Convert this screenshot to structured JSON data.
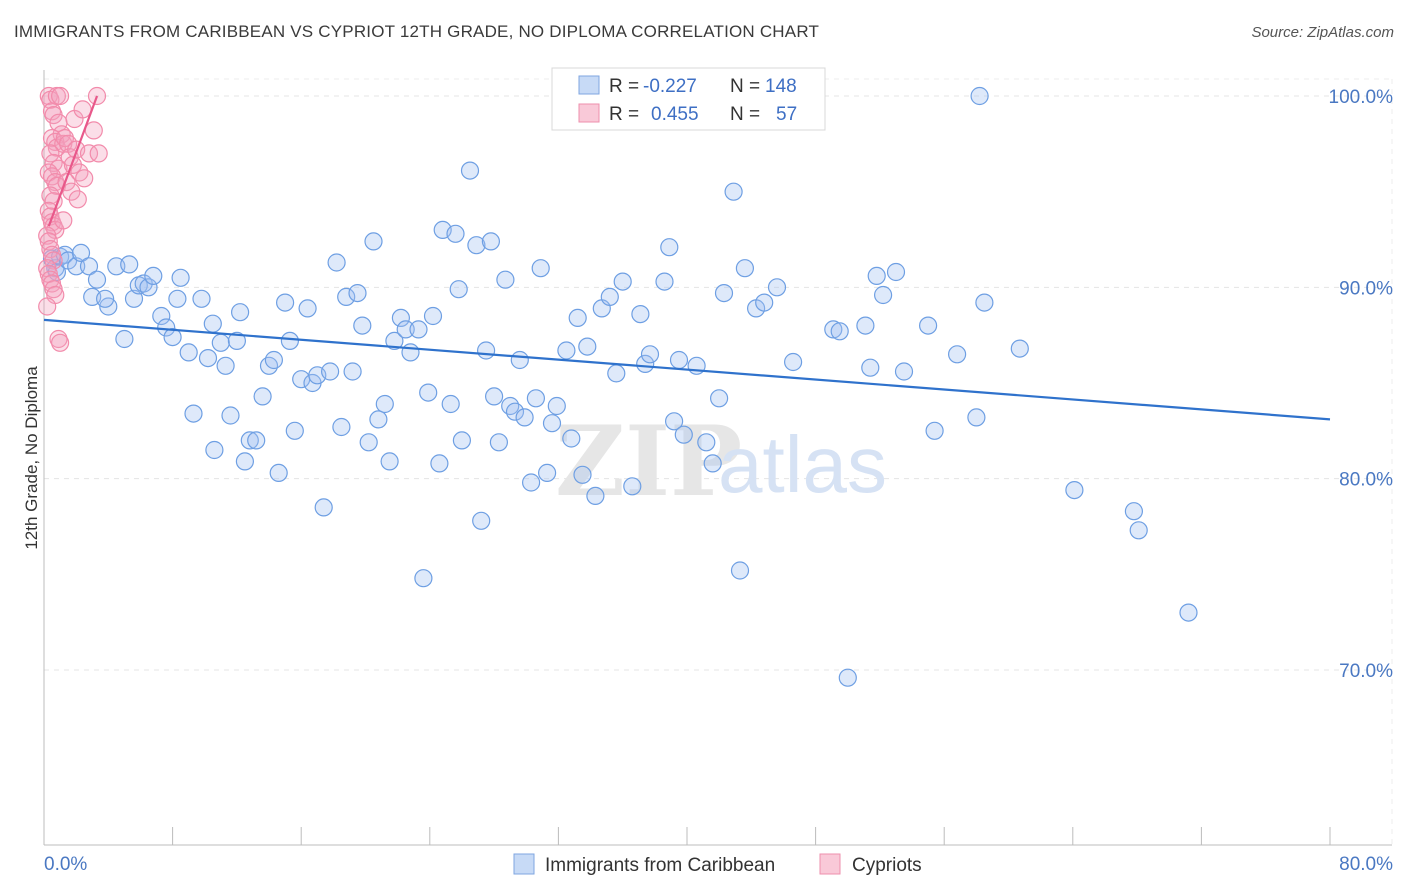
{
  "header": {
    "title": "IMMIGRANTS FROM CARIBBEAN VS CYPRIOT 12TH GRADE, NO DIPLOMA CORRELATION CHART",
    "source": "Source: ZipAtlas.com"
  },
  "watermark": {
    "zip": "ZIP",
    "atlas": "atlas"
  },
  "stats_legend": {
    "rows": [
      {
        "r_label": "R =",
        "r_value": "-0.227",
        "n_label": "N =",
        "n_value": "148",
        "color": "#a9c6f0"
      },
      {
        "r_label": "R =",
        "r_value": "0.455",
        "n_label": "N =",
        "n_value": "57",
        "color": "#f6b6c9"
      }
    ]
  },
  "chart_data": {
    "type": "scatter",
    "title": "IMMIGRANTS FROM CARIBBEAN VS CYPRIOT 12TH GRADE, NO DIPLOMA CORRELATION CHART",
    "xlabel": "",
    "ylabel": "12th Grade, No Diploma",
    "xlim": [
      0,
      80
    ],
    "ylim": [
      60,
      102
    ],
    "x_tick_labels": [
      "0.0%",
      "80.0%"
    ],
    "y_ticks": [
      70,
      80,
      90,
      100
    ],
    "y_tick_labels": [
      "70.0%",
      "80.0%",
      "90.0%",
      "100.0%"
    ],
    "grid": true,
    "legend_position": "bottom",
    "series": [
      {
        "name": "Immigrants from Caribbean",
        "color": "#6e9fe3",
        "line_color": "#2f72cc",
        "trend": [
          [
            0,
            88.3
          ],
          [
            80,
            83.1
          ]
        ],
        "points": [
          [
            0.5,
            91.5
          ],
          [
            0.7,
            91.0
          ],
          [
            0.8,
            90.8
          ],
          [
            1.0,
            91.6
          ],
          [
            1.3,
            91.7
          ],
          [
            1.5,
            91.4
          ],
          [
            2.0,
            91.1
          ],
          [
            2.3,
            91.8
          ],
          [
            2.8,
            91.1
          ],
          [
            3.3,
            90.4
          ],
          [
            3.0,
            89.5
          ],
          [
            4.0,
            89.0
          ],
          [
            3.8,
            89.4
          ],
          [
            4.5,
            91.1
          ],
          [
            5.3,
            91.2
          ],
          [
            5.0,
            87.3
          ],
          [
            5.6,
            89.4
          ],
          [
            5.9,
            90.1
          ],
          [
            6.2,
            90.2
          ],
          [
            6.5,
            90.0
          ],
          [
            6.8,
            90.6
          ],
          [
            7.3,
            88.5
          ],
          [
            7.6,
            87.9
          ],
          [
            8.0,
            87.4
          ],
          [
            8.3,
            89.4
          ],
          [
            8.5,
            90.5
          ],
          [
            9.0,
            86.6
          ],
          [
            9.3,
            83.4
          ],
          [
            9.8,
            89.4
          ],
          [
            10.2,
            86.3
          ],
          [
            10.5,
            88.1
          ],
          [
            10.6,
            81.5
          ],
          [
            11.0,
            87.1
          ],
          [
            11.3,
            85.9
          ],
          [
            11.6,
            83.3
          ],
          [
            12.0,
            87.2
          ],
          [
            12.2,
            88.7
          ],
          [
            12.5,
            80.9
          ],
          [
            12.8,
            82.0
          ],
          [
            13.2,
            82.0
          ],
          [
            13.6,
            84.3
          ],
          [
            14.0,
            85.9
          ],
          [
            14.3,
            86.2
          ],
          [
            14.6,
            80.3
          ],
          [
            15.0,
            89.2
          ],
          [
            15.3,
            87.2
          ],
          [
            15.6,
            82.5
          ],
          [
            16.0,
            85.2
          ],
          [
            16.4,
            88.9
          ],
          [
            16.7,
            85.0
          ],
          [
            17.0,
            85.4
          ],
          [
            17.4,
            78.5
          ],
          [
            17.8,
            85.6
          ],
          [
            18.2,
            91.3
          ],
          [
            18.5,
            82.7
          ],
          [
            18.8,
            89.5
          ],
          [
            19.2,
            85.6
          ],
          [
            19.5,
            89.7
          ],
          [
            19.8,
            88.0
          ],
          [
            20.2,
            81.9
          ],
          [
            20.5,
            92.4
          ],
          [
            20.8,
            83.1
          ],
          [
            21.2,
            83.9
          ],
          [
            21.5,
            80.9
          ],
          [
            21.8,
            87.2
          ],
          [
            22.2,
            88.4
          ],
          [
            22.5,
            87.8
          ],
          [
            22.8,
            86.6
          ],
          [
            23.3,
            87.8
          ],
          [
            23.6,
            74.8
          ],
          [
            23.9,
            84.5
          ],
          [
            24.2,
            88.5
          ],
          [
            24.6,
            80.8
          ],
          [
            24.8,
            93.0
          ],
          [
            25.3,
            83.9
          ],
          [
            25.6,
            92.8
          ],
          [
            25.8,
            89.9
          ],
          [
            26.0,
            82.0
          ],
          [
            26.5,
            96.1
          ],
          [
            26.9,
            92.2
          ],
          [
            27.2,
            77.8
          ],
          [
            27.5,
            86.7
          ],
          [
            27.8,
            92.4
          ],
          [
            28.0,
            84.3
          ],
          [
            28.3,
            81.9
          ],
          [
            28.7,
            90.4
          ],
          [
            29.0,
            83.8
          ],
          [
            29.3,
            83.5
          ],
          [
            29.6,
            86.2
          ],
          [
            29.9,
            83.2
          ],
          [
            30.3,
            79.8
          ],
          [
            30.6,
            84.2
          ],
          [
            30.9,
            91.0
          ],
          [
            31.3,
            80.3
          ],
          [
            31.6,
            82.9
          ],
          [
            31.9,
            83.8
          ],
          [
            32.5,
            86.7
          ],
          [
            32.8,
            82.1
          ],
          [
            33.2,
            88.4
          ],
          [
            33.5,
            80.2
          ],
          [
            33.8,
            86.9
          ],
          [
            34.3,
            79.1
          ],
          [
            34.7,
            88.9
          ],
          [
            35.2,
            89.5
          ],
          [
            35.6,
            85.5
          ],
          [
            36.0,
            90.3
          ],
          [
            36.6,
            79.6
          ],
          [
            37.1,
            88.6
          ],
          [
            37.4,
            86.0
          ],
          [
            37.7,
            86.5
          ],
          [
            38.6,
            90.3
          ],
          [
            38.9,
            92.1
          ],
          [
            39.2,
            83.0
          ],
          [
            39.5,
            86.2
          ],
          [
            39.8,
            82.3
          ],
          [
            40.6,
            85.9
          ],
          [
            41.2,
            81.9
          ],
          [
            41.6,
            80.8
          ],
          [
            42.0,
            84.2
          ],
          [
            42.3,
            89.7
          ],
          [
            42.9,
            95.0
          ],
          [
            43.3,
            75.2
          ],
          [
            43.6,
            91.0
          ],
          [
            44.3,
            88.9
          ],
          [
            44.8,
            89.2
          ],
          [
            45.6,
            90.0
          ],
          [
            46.6,
            86.1
          ],
          [
            47.8,
            100.0
          ],
          [
            49.1,
            87.8
          ],
          [
            49.5,
            87.7
          ],
          [
            50.0,
            69.6
          ],
          [
            51.1,
            88.0
          ],
          [
            51.4,
            85.8
          ],
          [
            51.8,
            90.6
          ],
          [
            52.2,
            89.6
          ],
          [
            53.0,
            90.8
          ],
          [
            53.5,
            85.6
          ],
          [
            55.0,
            88.0
          ],
          [
            55.4,
            82.5
          ],
          [
            56.8,
            86.5
          ],
          [
            58.0,
            83.2
          ],
          [
            58.2,
            100.0
          ],
          [
            58.5,
            89.2
          ],
          [
            60.7,
            86.8
          ],
          [
            64.1,
            79.4
          ],
          [
            67.8,
            78.3
          ],
          [
            68.1,
            77.3
          ],
          [
            71.2,
            73.0
          ]
        ]
      },
      {
        "name": "Cypriots",
        "color": "#f28bab",
        "line_color": "#e8588a",
        "trend": [
          [
            0.3,
            93.2
          ],
          [
            3.3,
            100.0
          ]
        ],
        "points": [
          [
            0.3,
            100.0
          ],
          [
            0.4,
            99.8
          ],
          [
            0.5,
            99.2
          ],
          [
            0.6,
            99.0
          ],
          [
            0.8,
            100.0
          ],
          [
            1.0,
            100.0
          ],
          [
            0.9,
            98.6
          ],
          [
            1.1,
            98.0
          ],
          [
            0.5,
            97.8
          ],
          [
            0.7,
            97.6
          ],
          [
            0.8,
            97.3
          ],
          [
            1.2,
            97.5
          ],
          [
            0.4,
            97.0
          ],
          [
            0.6,
            96.5
          ],
          [
            0.9,
            96.2
          ],
          [
            0.3,
            96.0
          ],
          [
            0.5,
            95.8
          ],
          [
            0.7,
            95.5
          ],
          [
            0.8,
            95.3
          ],
          [
            0.4,
            94.8
          ],
          [
            0.6,
            94.5
          ],
          [
            0.3,
            94.0
          ],
          [
            0.4,
            93.7
          ],
          [
            0.5,
            93.4
          ],
          [
            0.6,
            93.2
          ],
          [
            0.7,
            93.0
          ],
          [
            0.2,
            92.7
          ],
          [
            0.3,
            92.4
          ],
          [
            0.4,
            92.0
          ],
          [
            0.5,
            91.7
          ],
          [
            0.6,
            91.4
          ],
          [
            0.2,
            91.0
          ],
          [
            0.3,
            90.7
          ],
          [
            0.4,
            90.4
          ],
          [
            0.5,
            90.2
          ],
          [
            0.6,
            89.9
          ],
          [
            0.7,
            89.6
          ],
          [
            0.2,
            89.0
          ],
          [
            0.9,
            87.3
          ],
          [
            1.0,
            87.1
          ],
          [
            1.3,
            97.8
          ],
          [
            1.5,
            97.5
          ],
          [
            1.6,
            96.8
          ],
          [
            1.8,
            96.4
          ],
          [
            2.0,
            97.2
          ],
          [
            2.2,
            96.0
          ],
          [
            2.5,
            95.7
          ],
          [
            2.8,
            97.0
          ],
          [
            3.1,
            98.2
          ],
          [
            3.3,
            100.0
          ],
          [
            3.4,
            97.0
          ],
          [
            1.4,
            95.5
          ],
          [
            1.7,
            95.0
          ],
          [
            2.1,
            94.6
          ],
          [
            1.2,
            93.5
          ],
          [
            1.9,
            98.8
          ],
          [
            2.4,
            99.3
          ]
        ]
      }
    ]
  }
}
